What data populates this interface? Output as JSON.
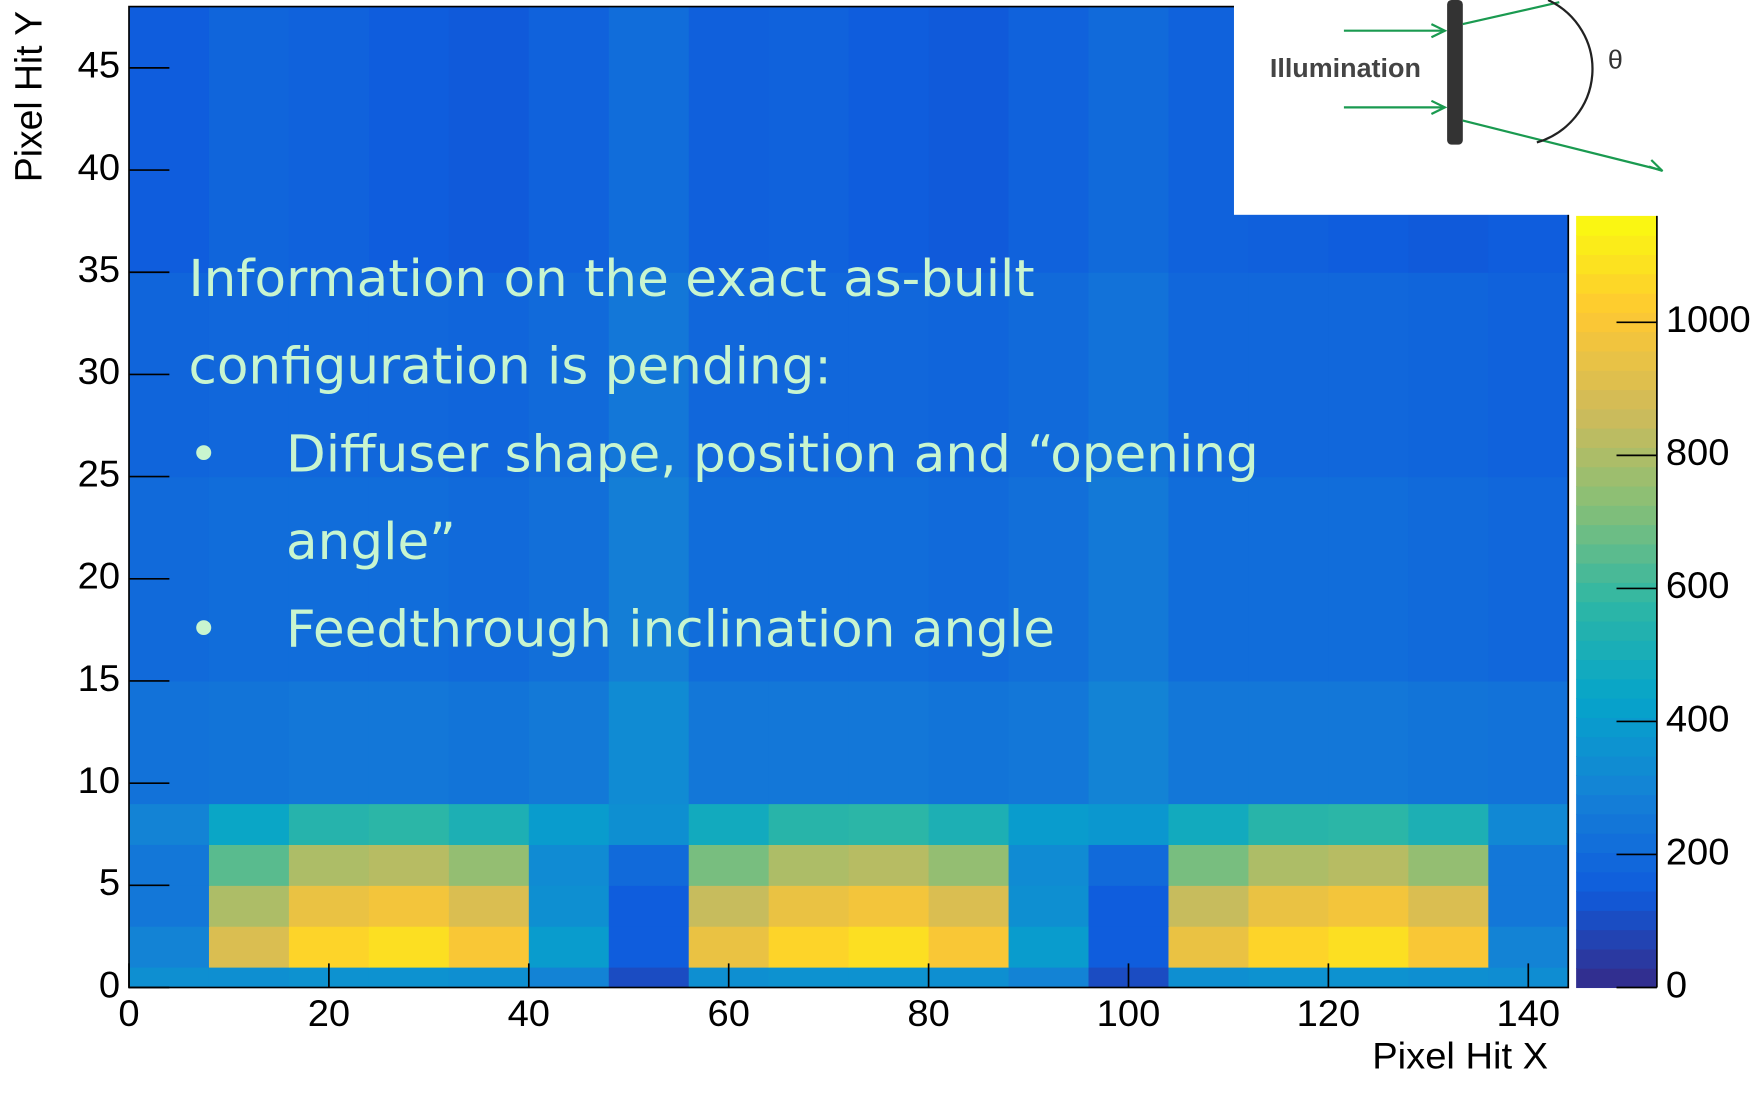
{
  "chart_data": {
    "type": "heatmap",
    "xlabel": "Pixel Hit X",
    "ylabel": "Pixel Hit Y",
    "x_bins": [
      0,
      8,
      16,
      24,
      32,
      40,
      48,
      56,
      64,
      72,
      80,
      88,
      96,
      104,
      112,
      120,
      128,
      136,
      144
    ],
    "y_bins": [
      0,
      1,
      3,
      5,
      7,
      9,
      15,
      25,
      35,
      48
    ],
    "z": [
      [
        350,
        350,
        360,
        360,
        350,
        300,
        100,
        350,
        360,
        360,
        350,
        300,
        100,
        350,
        360,
        360,
        350,
        340
      ],
      [
        300,
        900,
        1050,
        1080,
        1000,
        400,
        150,
        950,
        1050,
        1080,
        1000,
        400,
        150,
        950,
        1050,
        1080,
        1000,
        300
      ],
      [
        250,
        800,
        950,
        980,
        900,
        350,
        150,
        850,
        950,
        980,
        900,
        350,
        150,
        850,
        950,
        980,
        900,
        250
      ],
      [
        250,
        650,
        800,
        820,
        750,
        330,
        200,
        700,
        800,
        820,
        750,
        330,
        200,
        700,
        800,
        820,
        750,
        250
      ],
      [
        300,
        450,
        550,
        570,
        520,
        400,
        350,
        480,
        560,
        570,
        520,
        400,
        380,
        480,
        560,
        570,
        520,
        320
      ],
      [
        230,
        240,
        250,
        250,
        240,
        260,
        330,
        250,
        250,
        250,
        240,
        250,
        300,
        250,
        250,
        250,
        240,
        230
      ],
      [
        200,
        210,
        210,
        210,
        200,
        220,
        280,
        210,
        210,
        210,
        200,
        220,
        260,
        210,
        210,
        210,
        200,
        190
      ],
      [
        180,
        190,
        190,
        190,
        180,
        200,
        250,
        190,
        190,
        190,
        180,
        200,
        230,
        190,
        190,
        190,
        180,
        170
      ],
      [
        150,
        180,
        170,
        150,
        140,
        170,
        210,
        160,
        170,
        150,
        140,
        170,
        200,
        170,
        160,
        150,
        140,
        150
      ]
    ],
    "xlim": [
      0,
      144
    ],
    "ylim": [
      0,
      48
    ],
    "zlim": [
      0,
      1160
    ],
    "xticks": [
      0,
      20,
      40,
      60,
      80,
      100,
      120,
      140
    ],
    "yticks": [
      0,
      5,
      10,
      15,
      20,
      25,
      30,
      35,
      40,
      45
    ],
    "zticks": [
      0,
      200,
      400,
      600,
      800,
      1000
    ],
    "colorscale": [
      "#352a87",
      "#0f5cdd",
      "#1481d6",
      "#06a4ca",
      "#2eb7a4",
      "#87bf77",
      "#d1bb59",
      "#fec832",
      "#f9fb0e"
    ]
  },
  "slide": {
    "text": [
      "Information on the exact as-built",
      "configuration is pending:"
    ],
    "bullets": [
      [
        "Diffuser shape, position and “opening",
        "angle”"
      ],
      [
        "Feedthrough inclination angle"
      ]
    ],
    "bullet_symbol": "•"
  },
  "inset": {
    "label": "Illumination",
    "angle": "θ"
  }
}
